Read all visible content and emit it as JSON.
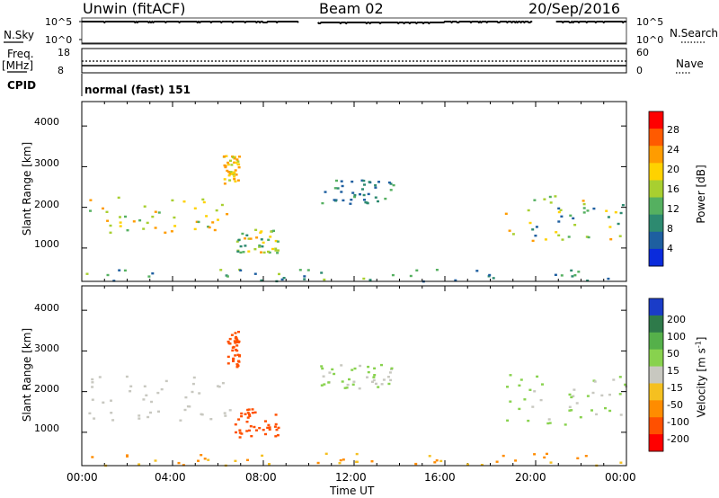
{
  "header": {
    "station": "Unwin (fitACF)",
    "beam": "Beam 02",
    "date": "20/Sep/2016"
  },
  "strips": {
    "nsky": {
      "label": "N.Sky",
      "left_ticks": [
        "10^5",
        "10^0"
      ],
      "right_ticks": [
        "10^5",
        "10^0"
      ],
      "right_label": "N.Search",
      "gaps_hours": [
        [
          9.6,
          10.4
        ],
        [
          19.9,
          20.9
        ]
      ]
    },
    "freq": {
      "label_top": "Freq.",
      "label_unit": "[MHz]",
      "left_ticks": [
        "18",
        "8"
      ],
      "right_ticks": [
        "60",
        "0"
      ],
      "right_label": "Nave"
    },
    "cpid": {
      "label": "CPID",
      "value": "normal (fast) 151"
    }
  },
  "axes": {
    "x_ticks": [
      "00:00",
      "04:00",
      "08:00",
      "12:00",
      "16:00",
      "20:00",
      "00:00"
    ],
    "x_label": "Time UT",
    "y_ticks": [
      "4000",
      "3000",
      "2000",
      "1000"
    ],
    "y_label": "Slant Range [km]"
  },
  "power_colorbar": {
    "title": "Power [dB]",
    "ticks": [
      "28",
      "24",
      "20",
      "16",
      "12",
      "8",
      "4"
    ],
    "colors": [
      "#ff0000",
      "#ff5a00",
      "#ff9c00",
      "#ffd200",
      "#a8cf30",
      "#55b060",
      "#2d8a70",
      "#1e5fa0",
      "#0a2bdc"
    ]
  },
  "velocity_colorbar": {
    "title": "Velocity [m s",
    "title_sup": "-1",
    "title_close": "]",
    "ticks": [
      "200",
      "100",
      "50",
      "15",
      "-15",
      "-50",
      "-100",
      "-200"
    ],
    "colors": [
      "#1a3cc8",
      "#2e7a4a",
      "#55b04a",
      "#88d24e",
      "#c8c8c0",
      "#f5c020",
      "#ff8c00",
      "#ff5000",
      "#ff0000"
    ]
  },
  "chart_data": [
    {
      "type": "heatmap",
      "title": "Power",
      "xlabel": "Time UT",
      "ylabel": "Slant Range [km]",
      "xlim": [
        0,
        24
      ],
      "ylim": [
        180,
        4600
      ],
      "value_label": "Power [dB]",
      "features": [
        {
          "t_start": 0.2,
          "t_end": 6.6,
          "range_km": [
            1400,
            2300
          ],
          "power_db": [
            12,
            24
          ]
        },
        {
          "t_start": 6.2,
          "t_end": 6.9,
          "range_km": [
            2500,
            3300
          ],
          "power_db": [
            16,
            24
          ]
        },
        {
          "t_start": 6.8,
          "t_end": 8.8,
          "range_km": [
            900,
            1500
          ],
          "power_db": [
            8,
            24
          ]
        },
        {
          "t_start": 10.5,
          "t_end": 13.7,
          "range_km": [
            2100,
            2700
          ],
          "power_db": [
            4,
            12
          ]
        },
        {
          "t_start": 18.6,
          "t_end": 24.0,
          "range_km": [
            1200,
            2400
          ],
          "power_db": [
            4,
            24
          ]
        },
        {
          "t_start": 0.0,
          "t_end": 24.0,
          "range_km": [
            200,
            500
          ],
          "power_db": [
            4,
            16
          ]
        }
      ]
    },
    {
      "type": "heatmap",
      "title": "Velocity",
      "xlabel": "Time UT",
      "ylabel": "Slant Range [km]",
      "xlim": [
        0,
        24
      ],
      "ylim": [
        180,
        4600
      ],
      "value_label": "Velocity [m s-1]",
      "features": [
        {
          "t_start": 0.2,
          "t_end": 6.6,
          "range_km": [
            1300,
            2400
          ],
          "velocity": [
            -15,
            15
          ]
        },
        {
          "t_start": 6.4,
          "t_end": 6.9,
          "range_km": [
            2600,
            3500
          ],
          "velocity": [
            -200,
            -100
          ]
        },
        {
          "t_start": 6.7,
          "t_end": 8.7,
          "range_km": [
            900,
            1600
          ],
          "velocity": [
            -200,
            -100
          ]
        },
        {
          "t_start": 10.5,
          "t_end": 13.7,
          "range_km": [
            2100,
            2700
          ],
          "velocity": [
            -15,
            50
          ]
        },
        {
          "t_start": 18.6,
          "t_end": 24.0,
          "range_km": [
            1200,
            2500
          ],
          "velocity": [
            -15,
            50
          ]
        },
        {
          "t_start": 0.0,
          "t_end": 24.0,
          "range_km": [
            200,
            500
          ],
          "velocity": [
            -100,
            -15
          ]
        }
      ]
    }
  ]
}
